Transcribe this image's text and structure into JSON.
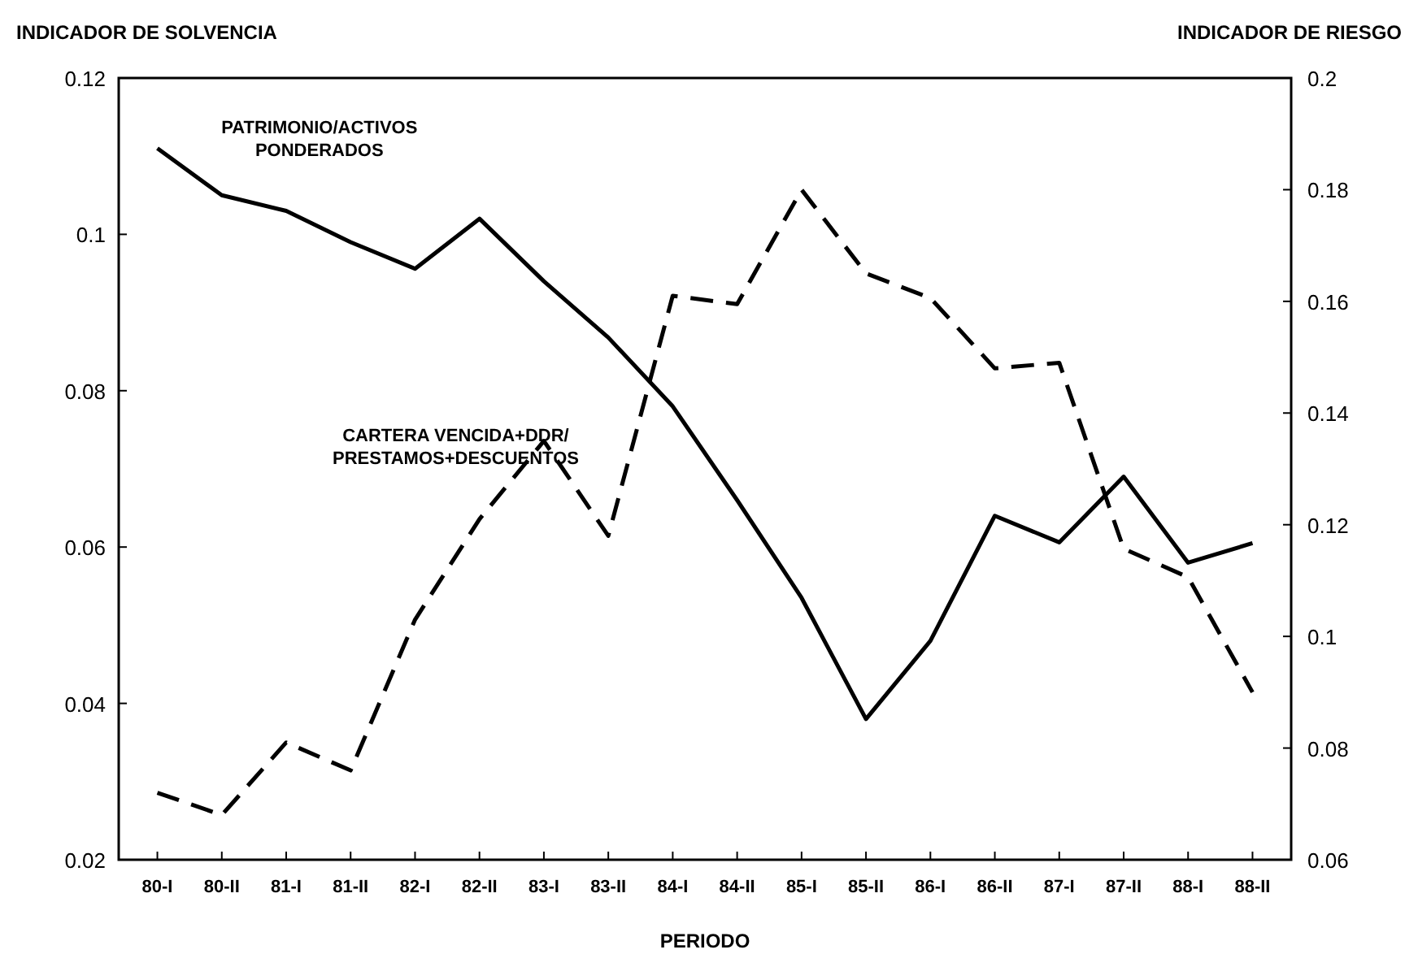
{
  "chart_data": {
    "type": "line",
    "xlabel": "PERIODO",
    "ylabel": "INDICADOR DE SOLVENCIA",
    "y2label": "INDICADOR DE RIESGO",
    "categories": [
      "80-I",
      "80-II",
      "81-I",
      "81-II",
      "82-I",
      "82-II",
      "83-I",
      "83-II",
      "84-I",
      "84-II",
      "85-I",
      "85-II",
      "86-I",
      "86-II",
      "87-I",
      "87-II",
      "88-I",
      "88-II"
    ],
    "series": [
      {
        "name": "PATRIMONIO/ACTIVOS PONDERADOS",
        "color": "#000000",
        "line_style": "solid",
        "values": [
          0.111,
          0.105,
          0.103,
          0.099,
          0.0956,
          0.102,
          0.094,
          0.0868,
          0.078,
          0.066,
          0.0535,
          0.038,
          0.048,
          0.064,
          0.0606,
          0.069,
          0.058,
          0.0605
        ]
      },
      {
        "name": "CARTERA VENCIDA+DDR/ PRESTAMOS+DESCUENTOS",
        "color": "#000000",
        "line_style": "dashed",
        "axis": "y2",
        "values": [
          0.072,
          0.068,
          0.081,
          0.076,
          0.103,
          0.121,
          0.135,
          0.118,
          0.161,
          0.1595,
          0.18,
          0.165,
          0.1606,
          0.148,
          0.149,
          0.1157,
          0.1106,
          0.09
        ]
      }
    ],
    "ylim": [
      0.02,
      0.12
    ],
    "yticks": [
      0.02,
      0.04,
      0.06,
      0.08,
      0.1,
      0.12
    ],
    "y2lim": [
      0.06,
      0.2
    ],
    "y2ticks": [
      0.06,
      0.08,
      0.1,
      0.12,
      0.14,
      0.16,
      0.18,
      0.2
    ],
    "grid": false
  }
}
